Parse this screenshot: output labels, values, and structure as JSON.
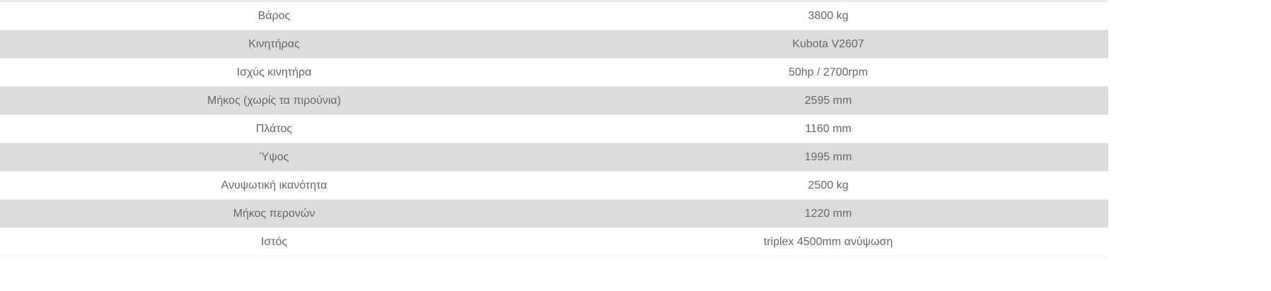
{
  "specs": [
    {
      "label": "Βάρος",
      "value": "3800 kg"
    },
    {
      "label": "Κινητήρας",
      "value": "Kubota V2607"
    },
    {
      "label": "Ισχύς κινητήρα",
      "value": "50hp / 2700rpm"
    },
    {
      "label": "Μήκος (χωρίς τα πιρούνια)",
      "value": "2595 mm"
    },
    {
      "label": "Πλάτος",
      "value": "1160 mm"
    },
    {
      "label": "Ύψος",
      "value": "1995 mm"
    },
    {
      "label": "Ανυψωτική ικανότητα",
      "value": "2500 kg"
    },
    {
      "label": "Μήκος περονών",
      "value": "1220 mm"
    },
    {
      "label": "Ιστός",
      "value": "triplex 4500mm ανύψωση"
    }
  ]
}
